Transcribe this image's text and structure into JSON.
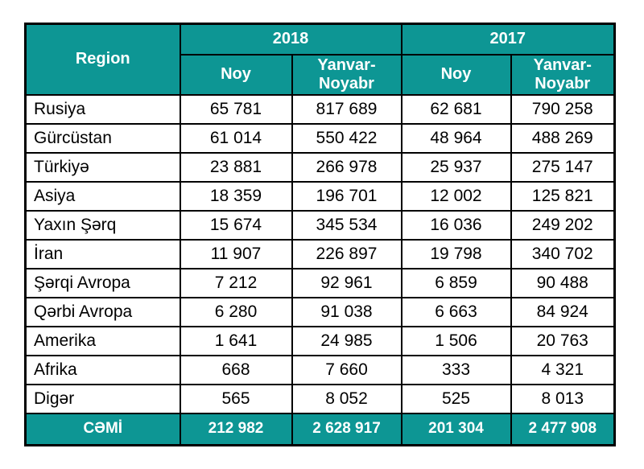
{
  "colors": {
    "teal": "#0d9694",
    "header_text": "#ffffff",
    "body_text": "#000000",
    "border": "#000000",
    "background": "#ffffff"
  },
  "header": {
    "region": "Region",
    "groups": [
      {
        "year": "2018",
        "sub": [
          "Noy",
          "Yanvar-Noyabr"
        ]
      },
      {
        "year": "2017",
        "sub": [
          "Noy",
          "Yanvar-Noyabr"
        ]
      }
    ]
  },
  "chart_data": {
    "type": "table",
    "title": "",
    "columns": [
      "Region",
      "2018 Noy",
      "2018 Yanvar-Noyabr",
      "2017 Noy",
      "2017 Yanvar-Noyabr"
    ],
    "rows": [
      {
        "region": "Rusiya",
        "values": [
          "65 781",
          "817 689",
          "62 681",
          "790 258"
        ]
      },
      {
        "region": "Gürcüstan",
        "values": [
          "61 014",
          "550 422",
          "48 964",
          "488 269"
        ]
      },
      {
        "region": "Türkiyə",
        "values": [
          "23 881",
          "266 978",
          "25 937",
          "275 147"
        ]
      },
      {
        "region": "Asiya",
        "values": [
          "18 359",
          "196 701",
          "12 002",
          "125 821"
        ]
      },
      {
        "region": "Yaxın Şərq",
        "values": [
          "15 674",
          "345 534",
          "16 036",
          "249 202"
        ]
      },
      {
        "region": "İran",
        "values": [
          "11 907",
          "226 897",
          "19 798",
          "340 702"
        ]
      },
      {
        "region": "Şərqi Avropa",
        "values": [
          "7 212",
          "92 961",
          "6 859",
          "90 488"
        ]
      },
      {
        "region": "Qərbi Avropa",
        "values": [
          "6 280",
          "91 038",
          "6 663",
          "84 924"
        ]
      },
      {
        "region": "Amerika",
        "values": [
          "1 641",
          "24 985",
          "1 506",
          "20 763"
        ]
      },
      {
        "region": "Afrika",
        "values": [
          "668",
          "7 660",
          "333",
          "4 321"
        ]
      },
      {
        "region": "Digər",
        "values": [
          "565",
          "8 052",
          "525",
          "8 013"
        ]
      }
    ],
    "total_row": {
      "label": "CƏMİ",
      "values": [
        "212 982",
        "2 628 917",
        "201 304",
        "2 477 908"
      ]
    }
  }
}
